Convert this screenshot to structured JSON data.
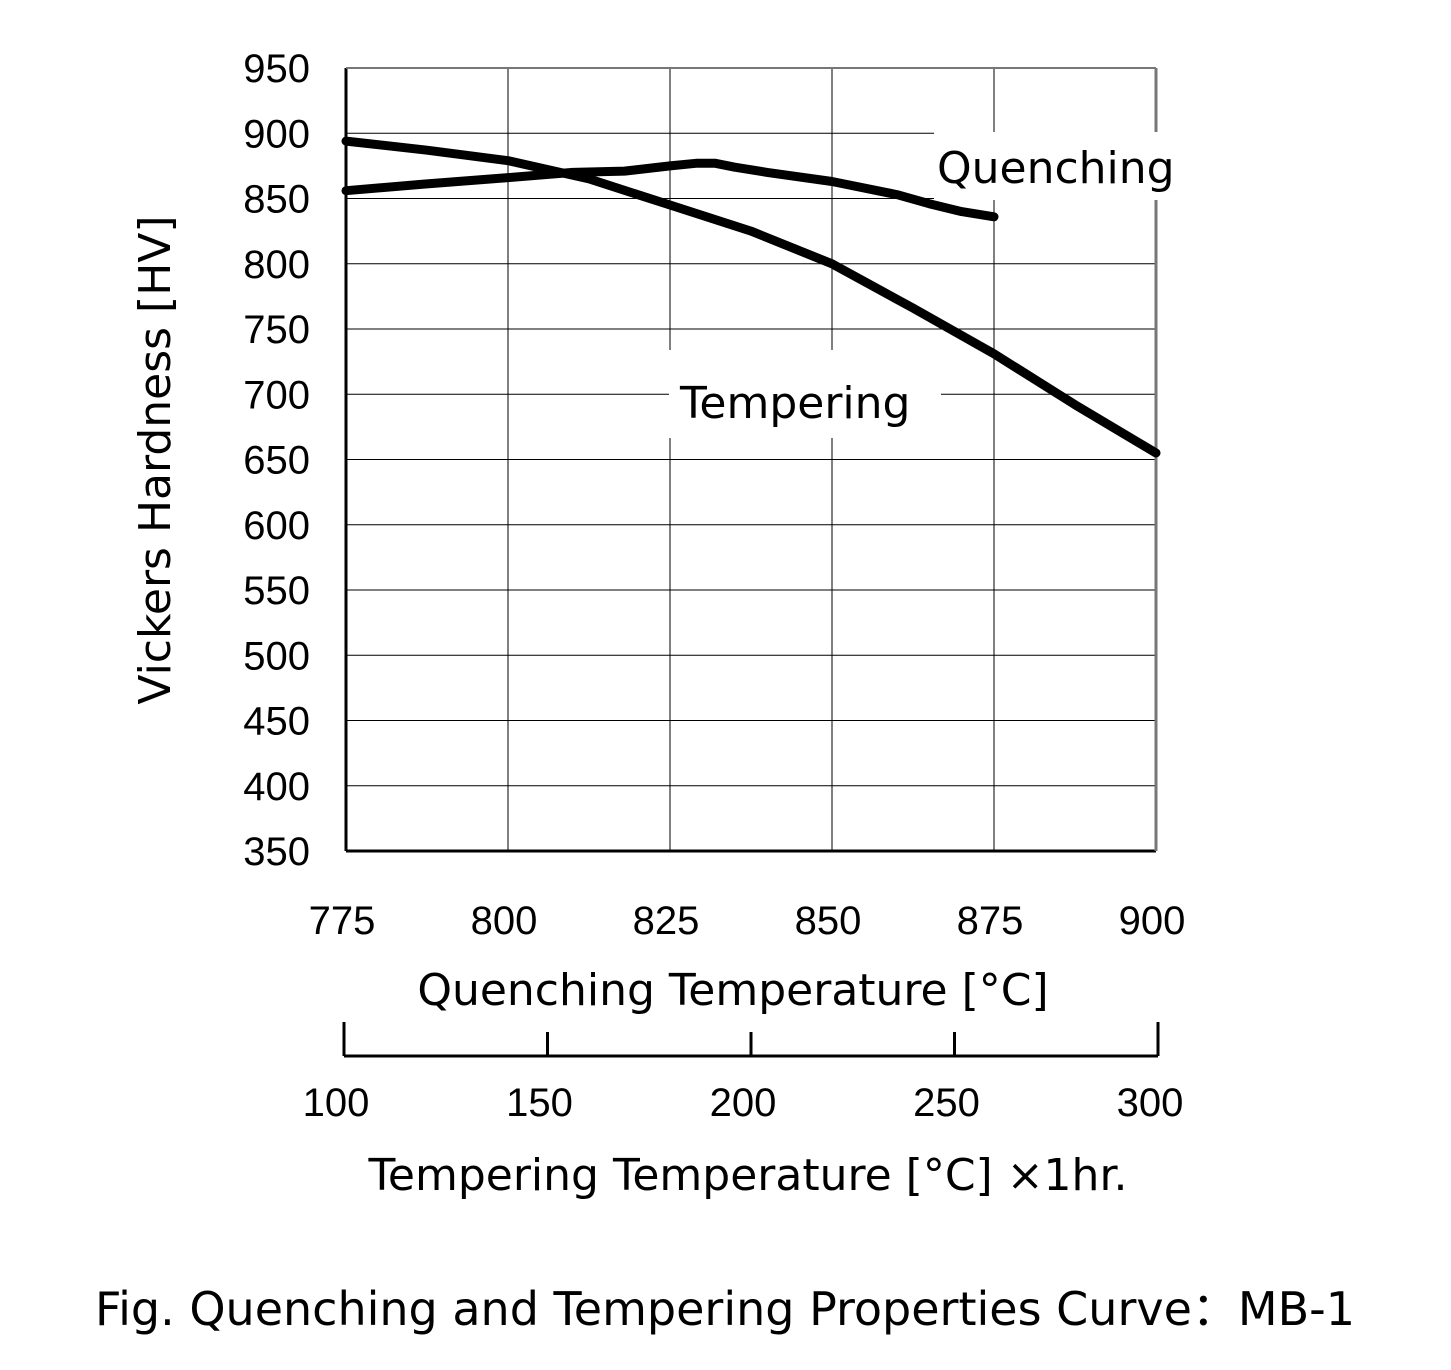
{
  "chart_data": {
    "type": "line",
    "caption": "Fig. Quenching and Tempering Properties Curve：MB-1",
    "ylabel": "Vickers Hardness [HV]",
    "ylim": [
      350,
      950
    ],
    "yticks": [
      "350",
      "400",
      "450",
      "500",
      "550",
      "600",
      "650",
      "700",
      "750",
      "800",
      "850",
      "900",
      "950"
    ],
    "xlabel": "Quenching Temperature [°C]",
    "xlim": [
      775,
      900
    ],
    "xticks": [
      "775",
      "800",
      "825",
      "850",
      "875",
      "900"
    ],
    "x2label": "Tempering Temperature [°C] ×1hr.",
    "x2lim": [
      100,
      300
    ],
    "x2ticks": [
      "100",
      "150",
      "200",
      "250",
      "300"
    ],
    "grid": true,
    "series": [
      {
        "name": "Quenching",
        "axis": "quenching",
        "color": "#000000",
        "points": [
          [
            775,
            856
          ],
          [
            787,
            861
          ],
          [
            800,
            866
          ],
          [
            810,
            870
          ],
          [
            818,
            871
          ],
          [
            825,
            875
          ],
          [
            829,
            877
          ],
          [
            832,
            877
          ],
          [
            835,
            874
          ],
          [
            840,
            870
          ],
          [
            850,
            863
          ],
          [
            860,
            853
          ],
          [
            865,
            846
          ],
          [
            870,
            840
          ],
          [
            875,
            836
          ]
        ]
      },
      {
        "name": "Tempering",
        "axis": "tempering",
        "color": "#000000",
        "points": [
          [
            100,
            894
          ],
          [
            120,
            887
          ],
          [
            140,
            879
          ],
          [
            160,
            865
          ],
          [
            180,
            845
          ],
          [
            200,
            825
          ],
          [
            220,
            800
          ],
          [
            240,
            766
          ],
          [
            260,
            731
          ],
          [
            280,
            692
          ],
          [
            300,
            655
          ]
        ]
      }
    ]
  }
}
